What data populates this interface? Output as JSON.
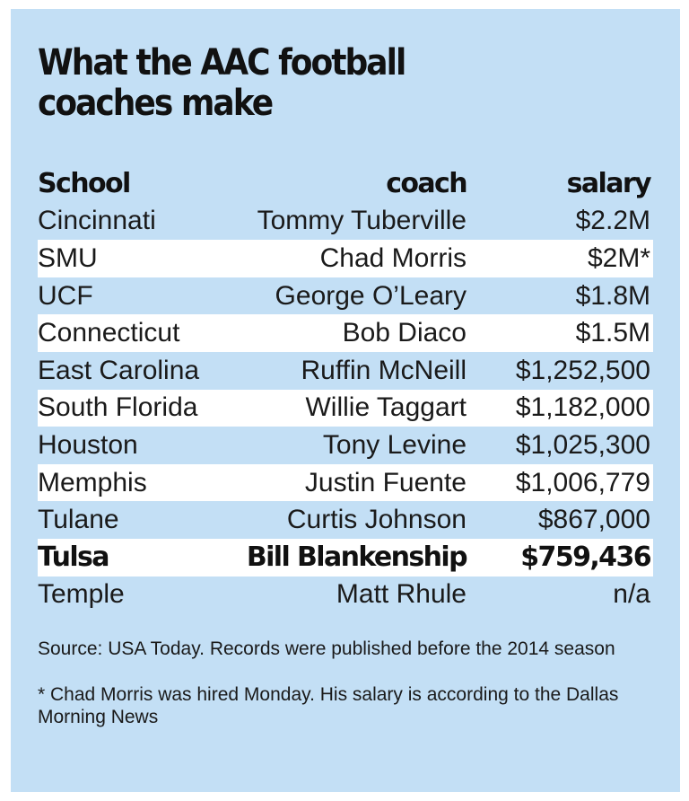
{
  "title": "What the AAC football coaches make",
  "columns": {
    "school": "School",
    "coach": "coach",
    "salary": "salary"
  },
  "rows": [
    {
      "school": "Cincinnati",
      "coach": "Tommy Tuberville",
      "salary": "$2.2M",
      "shaded": false,
      "bold": false
    },
    {
      "school": "SMU",
      "coach": "Chad Morris",
      "salary": "$2M*",
      "shaded": true,
      "bold": false
    },
    {
      "school": "UCF",
      "coach": "George O’Leary",
      "salary": "$1.8M",
      "shaded": false,
      "bold": false
    },
    {
      "school": "Connecticut",
      "coach": "Bob Diaco",
      "salary": "$1.5M",
      "shaded": true,
      "bold": false
    },
    {
      "school": "East Carolina",
      "coach": "Ruffin McNeill",
      "salary": "$1,252,500",
      "shaded": false,
      "bold": false
    },
    {
      "school": "South Florida",
      "coach": "Willie Taggart",
      "salary": "$1,182,000",
      "shaded": true,
      "bold": false
    },
    {
      "school": "Houston",
      "coach": "Tony Levine",
      "salary": "$1,025,300",
      "shaded": false,
      "bold": false
    },
    {
      "school": "Memphis",
      "coach": "Justin Fuente",
      "salary": "$1,006,779",
      "shaded": true,
      "bold": false
    },
    {
      "school": "Tulane",
      "coach": "Curtis Johnson",
      "salary": "$867,000",
      "shaded": false,
      "bold": false
    },
    {
      "school": "Tulsa",
      "coach": "Bill Blankenship",
      "salary": "$759,436",
      "shaded": true,
      "bold": true
    },
    {
      "school": "Temple",
      "coach": "Matt Rhule",
      "salary": "n/a",
      "shaded": false,
      "bold": false
    }
  ],
  "notes": {
    "source": "Source: USA Today. Records were published before the 2014 season",
    "footnote": "* Chad Morris was hired Monday. His salary is according to the Dallas Morning News"
  },
  "colors": {
    "panel_background": "#c3dff5",
    "row_highlight": "#ffffff",
    "text": "#1a1a1a"
  }
}
